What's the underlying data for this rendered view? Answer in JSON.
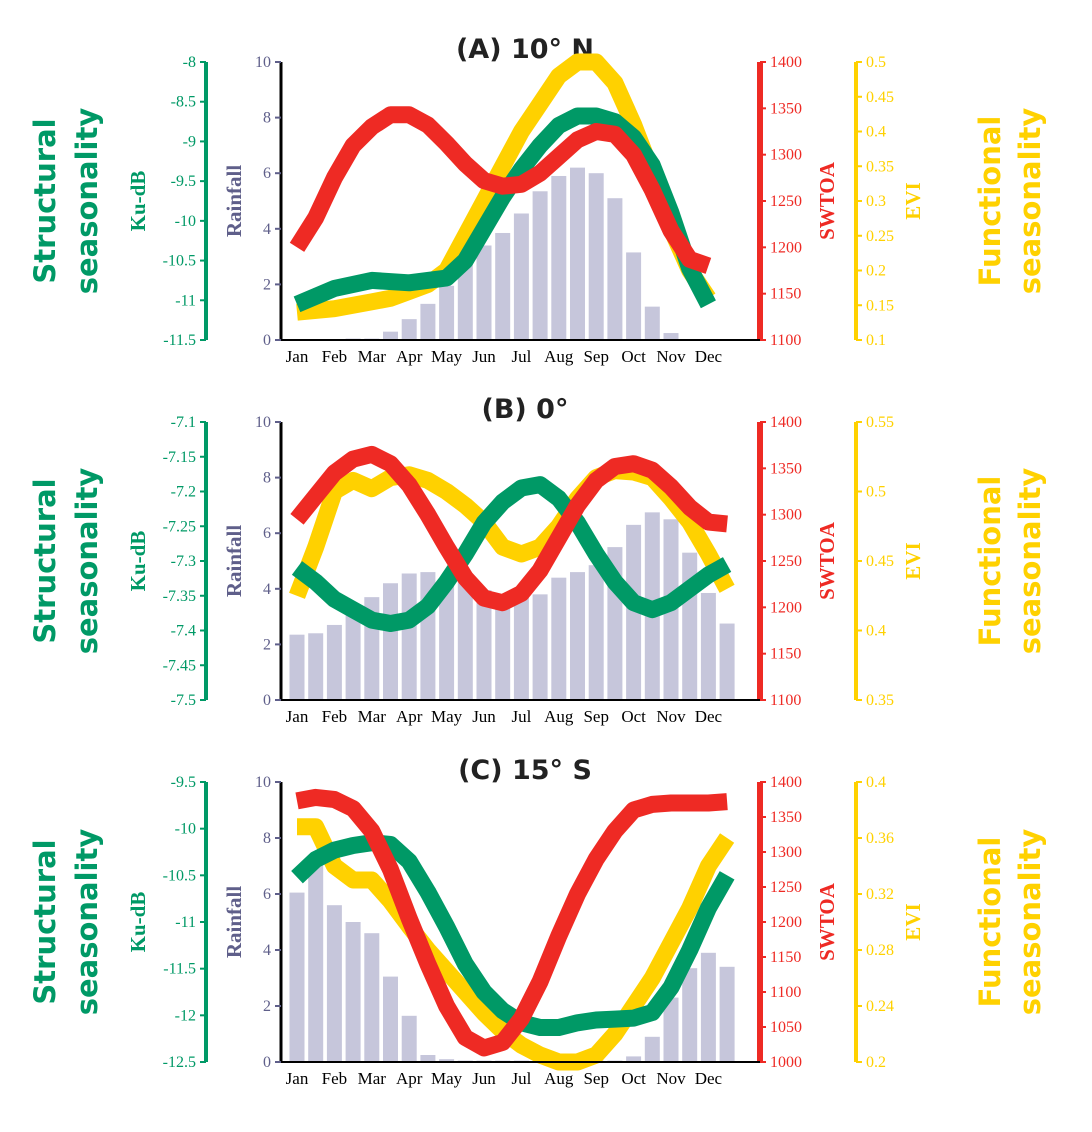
{
  "side_labels": {
    "structural_line1": "Structural",
    "structural_line2": "seasonality",
    "functional_line1": "Functional",
    "functional_line2": "seasonality"
  },
  "colors": {
    "ku": "#009966",
    "rain": "#c6c6db",
    "rain_label": "#5f5f8a",
    "swtoa": "#ee2a24",
    "evi": "#ffd100"
  },
  "chart_data": [
    {
      "type": "bar",
      "title": "(A) 10° N",
      "categories": [
        "Jan",
        "Feb",
        "Mar",
        "Apr",
        "May",
        "Jun",
        "Jul",
        "Aug",
        "Sep",
        "Oct",
        "Nov",
        "Dec"
      ],
      "axes": {
        "ku": {
          "label": "Ku-dB",
          "min": -11.5,
          "max": -8,
          "ticks": [
            -8,
            -8.5,
            -9,
            -9.5,
            -10,
            -10.5,
            -11,
            -11.5
          ]
        },
        "rain": {
          "label": "Rainfall",
          "min": 0,
          "max": 10,
          "ticks": [
            10,
            8,
            6,
            4,
            2,
            0
          ]
        },
        "swtoa": {
          "label": "SWTOA",
          "min": 1100,
          "max": 1400,
          "ticks": [
            1400,
            1350,
            1300,
            1250,
            1200,
            1150,
            1100
          ]
        },
        "evi": {
          "label": "EVI",
          "min": 0.1,
          "max": 0.5,
          "ticks": [
            0.5,
            0.45,
            0.4,
            0.35,
            0.3,
            0.25,
            0.2,
            0.15,
            0.1
          ]
        }
      },
      "rainfall": {
        "x": [
          2.5,
          3,
          3.5,
          4,
          4.5,
          5,
          5.5,
          6,
          6.5,
          7,
          7.5,
          8,
          8.5,
          9,
          9.5,
          10,
          10.5,
          11
        ],
        "values": [
          0.05,
          0.05,
          0.3,
          0.75,
          1.3,
          1.95,
          2.8,
          3.4,
          3.85,
          4.55,
          5.35,
          5.9,
          6.2,
          6.0,
          5.1,
          3.15,
          1.2,
          0.25
        ]
      },
      "series": [
        {
          "name": "Ku-dB",
          "axis": "ku",
          "x": [
            1,
            2,
            3,
            4,
            5,
            5.5,
            6,
            6.5,
            7,
            7.5,
            8,
            8.5,
            9,
            9.5,
            10,
            10.5,
            11,
            11.5,
            12
          ],
          "values": [
            -11.05,
            -10.85,
            -10.75,
            -10.78,
            -10.72,
            -10.5,
            -10.1,
            -9.7,
            -9.35,
            -9.05,
            -8.8,
            -8.68,
            -8.68,
            -8.75,
            -8.95,
            -9.3,
            -9.9,
            -10.6,
            -11.05
          ]
        },
        {
          "name": "SWTOA",
          "axis": "swtoa",
          "x": [
            1,
            1.5,
            2,
            2.5,
            3,
            3.5,
            4,
            4.5,
            5,
            5.5,
            6,
            6.5,
            7,
            7.5,
            8,
            8.5,
            9,
            9.5,
            10,
            10.5,
            11,
            11.5,
            12
          ],
          "values": [
            1200,
            1232,
            1275,
            1310,
            1330,
            1343,
            1343,
            1332,
            1312,
            1290,
            1272,
            1266,
            1268,
            1280,
            1298,
            1316,
            1325,
            1322,
            1300,
            1262,
            1218,
            1187,
            1180
          ]
        },
        {
          "name": "EVI",
          "axis": "evi",
          "x": [
            1,
            2,
            3,
            3.5,
            4,
            4.5,
            5,
            5.5,
            6,
            6.5,
            7,
            7.5,
            8,
            8.5,
            9,
            9.5,
            10,
            10.5,
            11,
            11.5,
            12
          ],
          "values": [
            0.14,
            0.145,
            0.155,
            0.16,
            0.17,
            0.18,
            0.2,
            0.25,
            0.3,
            0.35,
            0.4,
            0.44,
            0.48,
            0.5,
            0.5,
            0.47,
            0.41,
            0.34,
            0.26,
            0.2,
            0.16
          ]
        }
      ]
    },
    {
      "type": "bar",
      "title": "(B)  0°",
      "categories": [
        "Jan",
        "Feb",
        "Mar",
        "Apr",
        "May",
        "Jun",
        "Jul",
        "Aug",
        "Sep",
        "Oct",
        "Nov",
        "Dec"
      ],
      "axes": {
        "ku": {
          "label": "Ku-dB",
          "min": -7.5,
          "max": -7.1,
          "ticks": [
            -7.1,
            -7.15,
            -7.2,
            -7.25,
            -7.3,
            -7.35,
            -7.4,
            -7.45,
            -7.5
          ]
        },
        "rain": {
          "label": "Rainfall",
          "min": 0,
          "max": 10,
          "ticks": [
            10,
            8,
            6,
            4,
            2,
            0
          ]
        },
        "swtoa": {
          "label": "SWTOA",
          "min": 1100,
          "max": 1400,
          "ticks": [
            1400,
            1350,
            1300,
            1250,
            1200,
            1150,
            1100
          ]
        },
        "evi": {
          "label": "EVI",
          "min": 0.35,
          "max": 0.55,
          "ticks": [
            0.55,
            0.5,
            0.45,
            0.4,
            0.35
          ]
        }
      },
      "rainfall": {
        "x": [
          1,
          1.5,
          2,
          2.5,
          3,
          3.5,
          4,
          4.5,
          5,
          5.5,
          6,
          6.5,
          7,
          7.5,
          8,
          8.5,
          9,
          9.5,
          10,
          10.5,
          11,
          11.5,
          12,
          12.5
        ],
        "values": [
          2.35,
          2.4,
          2.7,
          3.2,
          3.7,
          4.2,
          4.55,
          4.6,
          4.4,
          4.3,
          3.95,
          3.8,
          3.75,
          3.8,
          4.4,
          4.6,
          4.85,
          5.5,
          6.3,
          6.75,
          6.5,
          5.3,
          3.85,
          2.75
        ]
      },
      "series": [
        {
          "name": "Ku-dB",
          "axis": "ku",
          "x": [
            1,
            1.5,
            2,
            2.5,
            3,
            3.5,
            4,
            4.5,
            5,
            5.5,
            6,
            6.5,
            7,
            7.5,
            8,
            8.5,
            9,
            9.5,
            10,
            10.5,
            11,
            11.5,
            12,
            12.5
          ],
          "values": [
            -7.31,
            -7.33,
            -7.355,
            -7.37,
            -7.385,
            -7.39,
            -7.385,
            -7.365,
            -7.33,
            -7.29,
            -7.245,
            -7.215,
            -7.195,
            -7.19,
            -7.21,
            -7.245,
            -7.29,
            -7.33,
            -7.36,
            -7.37,
            -7.36,
            -7.34,
            -7.32,
            -7.305
          ]
        },
        {
          "name": "SWTOA",
          "axis": "swtoa",
          "x": [
            1,
            1.5,
            2,
            2.5,
            3,
            3.5,
            4,
            4.5,
            5,
            5.5,
            6,
            6.5,
            7,
            7.5,
            8,
            8.5,
            9,
            9.5,
            10,
            10.5,
            11,
            11.5,
            12,
            12.5
          ],
          "values": [
            1295,
            1320,
            1345,
            1360,
            1365,
            1355,
            1332,
            1300,
            1265,
            1232,
            1210,
            1205,
            1215,
            1240,
            1275,
            1310,
            1337,
            1352,
            1355,
            1348,
            1330,
            1308,
            1292,
            1290
          ]
        },
        {
          "name": "EVI",
          "axis": "evi",
          "x": [
            1,
            1.5,
            2,
            2.5,
            3,
            3.5,
            4,
            4.5,
            5,
            5.5,
            6,
            6.5,
            7,
            7.5,
            8,
            8.5,
            9,
            9.5,
            10,
            10.5,
            11,
            11.5,
            12,
            12.5
          ],
          "values": [
            0.425,
            0.46,
            0.5,
            0.508,
            0.502,
            0.51,
            0.512,
            0.508,
            0.5,
            0.49,
            0.478,
            0.46,
            0.455,
            0.46,
            0.475,
            0.495,
            0.51,
            0.515,
            0.514,
            0.51,
            0.495,
            0.478,
            0.455,
            0.43
          ]
        }
      ]
    },
    {
      "type": "bar",
      "title": "(C) 15° S",
      "categories": [
        "Jan",
        "Feb",
        "Mar",
        "Apr",
        "May",
        "Jun",
        "Jul",
        "Aug",
        "Sep",
        "Oct",
        "Nov",
        "Dec"
      ],
      "axes": {
        "ku": {
          "label": "Ku-dB",
          "min": -12.5,
          "max": -9.5,
          "ticks": [
            -9.5,
            -10,
            -10.5,
            -11,
            -11.5,
            -12,
            -12.5
          ]
        },
        "rain": {
          "label": "Rainfall",
          "min": 0,
          "max": 10,
          "ticks": [
            10,
            8,
            6,
            4,
            2,
            0
          ]
        },
        "swtoa": {
          "label": "SWTOA",
          "min": 1000,
          "max": 1400,
          "ticks": [
            1400,
            1350,
            1300,
            1250,
            1200,
            1150,
            1100,
            1050,
            1000
          ]
        },
        "evi": {
          "label": "EVI",
          "min": 0.2,
          "max": 0.4,
          "ticks": [
            0.4,
            0.36,
            0.32,
            0.28,
            0.24,
            0.2
          ]
        }
      },
      "rainfall": {
        "x": [
          1,
          1.5,
          2,
          2.5,
          3,
          3.5,
          4,
          4.5,
          5,
          5.5,
          6,
          6.5,
          7,
          7.5,
          8,
          8.5,
          9,
          9.5,
          10,
          10.5,
          11,
          11.5,
          12,
          12.5
        ],
        "values": [
          6.05,
          7.35,
          5.6,
          5.0,
          4.6,
          3.05,
          1.65,
          0.25,
          0.1,
          0.05,
          0.05,
          0.05,
          0.05,
          0.05,
          0.05,
          0.05,
          0.05,
          0.05,
          0.2,
          0.9,
          2.3,
          3.35,
          3.9,
          3.4
        ]
      },
      "series": [
        {
          "name": "Ku-dB",
          "axis": "ku",
          "x": [
            1,
            1.5,
            2,
            2.5,
            3,
            3.5,
            4,
            4.5,
            5,
            5.5,
            6,
            6.5,
            7,
            7.5,
            8,
            8.5,
            9,
            9.5,
            10,
            10.5,
            11,
            11.5,
            12,
            12.5
          ],
          "values": [
            -10.52,
            -10.33,
            -10.23,
            -10.18,
            -10.15,
            -10.17,
            -10.35,
            -10.68,
            -11.05,
            -11.45,
            -11.75,
            -11.95,
            -12.08,
            -12.13,
            -12.13,
            -12.08,
            -12.05,
            -12.04,
            -12.03,
            -11.97,
            -11.7,
            -11.3,
            -10.85,
            -10.5
          ]
        },
        {
          "name": "SWTOA",
          "axis": "swtoa",
          "x": [
            1,
            1.5,
            2,
            2.5,
            3,
            3.5,
            4,
            4.5,
            5,
            5.5,
            6,
            6.5,
            7,
            7.5,
            8,
            8.5,
            9,
            9.5,
            10,
            10.5,
            11,
            11.5,
            12,
            12.5
          ],
          "values": [
            1373,
            1378,
            1375,
            1362,
            1330,
            1275,
            1205,
            1140,
            1080,
            1035,
            1020,
            1028,
            1062,
            1115,
            1180,
            1240,
            1290,
            1330,
            1360,
            1368,
            1370,
            1370,
            1370,
            1372
          ]
        },
        {
          "name": "EVI",
          "axis": "evi",
          "x": [
            1,
            1.5,
            2,
            2.5,
            3,
            3.5,
            4,
            4.5,
            5,
            5.5,
            6,
            6.5,
            7,
            7.5,
            8,
            8.5,
            9,
            9.5,
            10,
            10.5,
            11,
            11.5,
            12,
            12.5
          ],
          "values": [
            0.368,
            0.368,
            0.34,
            0.33,
            0.33,
            0.315,
            0.297,
            0.28,
            0.265,
            0.25,
            0.235,
            0.222,
            0.212,
            0.205,
            0.2,
            0.2,
            0.205,
            0.22,
            0.24,
            0.26,
            0.285,
            0.31,
            0.34,
            0.36
          ]
        }
      ]
    }
  ]
}
